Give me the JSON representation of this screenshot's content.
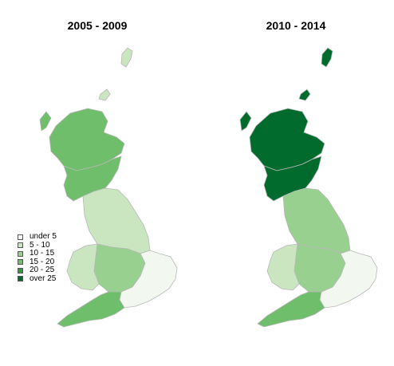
{
  "panels": [
    {
      "title": "2005 - 2009"
    },
    {
      "title": "2010 - 2014"
    }
  ],
  "legend": [
    {
      "label": "under 5",
      "color": "#f2f8f0"
    },
    {
      "label": "5 - 10",
      "color": "#c9e6c1"
    },
    {
      "label": "10 - 15",
      "color": "#97d08f"
    },
    {
      "label": "15 - 20",
      "color": "#6ebe6b"
    },
    {
      "label": "20 - 25",
      "color": "#2f9b45"
    },
    {
      "label": "over 25",
      "color": "#006b2d"
    }
  ],
  "regions": {
    "left": {
      "scotland_north": "15 - 20",
      "scotland_south": "15 - 20",
      "orkney_shetland": "5 - 10",
      "north_england": "5 - 10",
      "midlands": "10 - 15",
      "wales": "5 - 10",
      "east_southeast": "under 5",
      "southwest": "15 - 20"
    },
    "right": {
      "scotland_north": "over 25",
      "scotland_south": "over 25",
      "orkney_shetland": "over 25",
      "north_england": "10 - 15",
      "midlands": "10 - 15",
      "wales": "5 - 10",
      "east_southeast": "under 5",
      "southwest": "15 - 20"
    }
  }
}
